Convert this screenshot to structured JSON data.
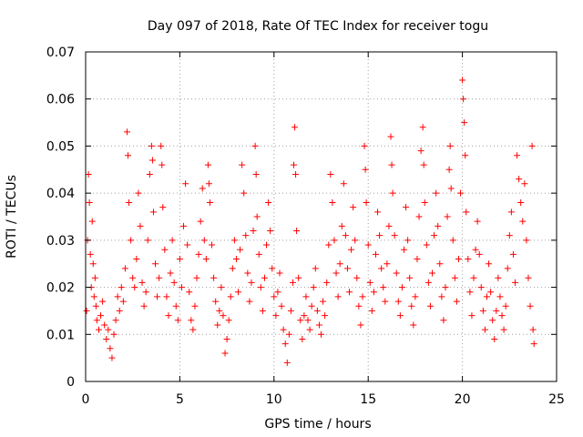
{
  "chart_data": {
    "type": "scatter",
    "title": "Day 097 of 2018, Rate Of TEC Index for receiver togu",
    "xlabel": "GPS time / hours",
    "ylabel": "ROTI / TECUs",
    "xlim": [
      0,
      25
    ],
    "ylim": [
      0,
      0.07
    ],
    "x_ticks": [
      0,
      5,
      10,
      15,
      20,
      25
    ],
    "x_tick_labels": [
      "0",
      "5",
      "10",
      "15",
      "20",
      "25"
    ],
    "y_ticks": [
      0,
      0.01,
      0.02,
      0.03,
      0.04,
      0.05,
      0.06,
      0.07
    ],
    "y_tick_labels": [
      "0",
      "0.01",
      "0.02",
      "0.03",
      "0.04",
      "0.05",
      "0.06",
      "0.07"
    ],
    "grid": true,
    "marker": "+",
    "color": "#ff0000",
    "series": [
      {
        "name": "ROTI",
        "points": [
          [
            0.05,
            0.015
          ],
          [
            0.1,
            0.03
          ],
          [
            0.15,
            0.044
          ],
          [
            0.2,
            0.038
          ],
          [
            0.25,
            0.027
          ],
          [
            0.3,
            0.02
          ],
          [
            0.35,
            0.034
          ],
          [
            0.4,
            0.025
          ],
          [
            0.45,
            0.018
          ],
          [
            0.5,
            0.022
          ],
          [
            0.55,
            0.016
          ],
          [
            0.6,
            0.013
          ],
          [
            0.7,
            0.011
          ],
          [
            0.8,
            0.014
          ],
          [
            0.9,
            0.017
          ],
          [
            1.0,
            0.012
          ],
          [
            1.1,
            0.009
          ],
          [
            1.2,
            0.011
          ],
          [
            1.3,
            0.007
          ],
          [
            1.4,
            0.005
          ],
          [
            1.5,
            0.01
          ],
          [
            1.6,
            0.013
          ],
          [
            1.7,
            0.018
          ],
          [
            1.8,
            0.015
          ],
          [
            1.9,
            0.02
          ],
          [
            2.0,
            0.017
          ],
          [
            2.1,
            0.024
          ],
          [
            2.2,
            0.053
          ],
          [
            2.25,
            0.048
          ],
          [
            2.3,
            0.038
          ],
          [
            2.4,
            0.03
          ],
          [
            2.5,
            0.022
          ],
          [
            2.6,
            0.02
          ],
          [
            2.7,
            0.026
          ],
          [
            2.8,
            0.04
          ],
          [
            2.9,
            0.033
          ],
          [
            3.0,
            0.021
          ],
          [
            3.1,
            0.016
          ],
          [
            3.2,
            0.019
          ],
          [
            3.3,
            0.03
          ],
          [
            3.4,
            0.044
          ],
          [
            3.5,
            0.05
          ],
          [
            3.55,
            0.047
          ],
          [
            3.6,
            0.036
          ],
          [
            3.7,
            0.025
          ],
          [
            3.8,
            0.018
          ],
          [
            3.9,
            0.022
          ],
          [
            4.0,
            0.05
          ],
          [
            4.05,
            0.046
          ],
          [
            4.1,
            0.037
          ],
          [
            4.2,
            0.028
          ],
          [
            4.3,
            0.018
          ],
          [
            4.4,
            0.014
          ],
          [
            4.5,
            0.023
          ],
          [
            4.6,
            0.03
          ],
          [
            4.7,
            0.021
          ],
          [
            4.8,
            0.016
          ],
          [
            4.9,
            0.013
          ],
          [
            5.0,
            0.026
          ],
          [
            5.1,
            0.02
          ],
          [
            5.2,
            0.033
          ],
          [
            5.3,
            0.042
          ],
          [
            5.4,
            0.029
          ],
          [
            5.5,
            0.019
          ],
          [
            5.6,
            0.013
          ],
          [
            5.7,
            0.011
          ],
          [
            5.8,
            0.016
          ],
          [
            5.9,
            0.022
          ],
          [
            6.0,
            0.027
          ],
          [
            6.1,
            0.034
          ],
          [
            6.2,
            0.041
          ],
          [
            6.3,
            0.03
          ],
          [
            6.4,
            0.026
          ],
          [
            6.5,
            0.046
          ],
          [
            6.55,
            0.042
          ],
          [
            6.6,
            0.038
          ],
          [
            6.7,
            0.029
          ],
          [
            6.8,
            0.022
          ],
          [
            6.9,
            0.017
          ],
          [
            7.0,
            0.012
          ],
          [
            7.1,
            0.015
          ],
          [
            7.2,
            0.02
          ],
          [
            7.3,
            0.014
          ],
          [
            7.4,
            0.006
          ],
          [
            7.5,
            0.009
          ],
          [
            7.6,
            0.013
          ],
          [
            7.7,
            0.018
          ],
          [
            7.8,
            0.024
          ],
          [
            7.9,
            0.03
          ],
          [
            8.0,
            0.026
          ],
          [
            8.1,
            0.019
          ],
          [
            8.2,
            0.028
          ],
          [
            8.3,
            0.046
          ],
          [
            8.4,
            0.04
          ],
          [
            8.5,
            0.031
          ],
          [
            8.6,
            0.023
          ],
          [
            8.7,
            0.017
          ],
          [
            8.8,
            0.021
          ],
          [
            8.9,
            0.032
          ],
          [
            9.0,
            0.05
          ],
          [
            9.05,
            0.044
          ],
          [
            9.1,
            0.035
          ],
          [
            9.2,
            0.027
          ],
          [
            9.3,
            0.02
          ],
          [
            9.4,
            0.015
          ],
          [
            9.5,
            0.022
          ],
          [
            9.6,
            0.029
          ],
          [
            9.7,
            0.038
          ],
          [
            9.8,
            0.032
          ],
          [
            9.9,
            0.024
          ],
          [
            10.0,
            0.018
          ],
          [
            10.1,
            0.014
          ],
          [
            10.2,
            0.019
          ],
          [
            10.3,
            0.023
          ],
          [
            10.4,
            0.016
          ],
          [
            10.5,
            0.011
          ],
          [
            10.6,
            0.008
          ],
          [
            10.7,
            0.004
          ],
          [
            10.8,
            0.01
          ],
          [
            10.9,
            0.015
          ],
          [
            11.0,
            0.021
          ],
          [
            11.05,
            0.046
          ],
          [
            11.1,
            0.054
          ],
          [
            11.15,
            0.044
          ],
          [
            11.2,
            0.032
          ],
          [
            11.3,
            0.022
          ],
          [
            11.4,
            0.013
          ],
          [
            11.5,
            0.009
          ],
          [
            11.6,
            0.014
          ],
          [
            11.7,
            0.018
          ],
          [
            11.8,
            0.013
          ],
          [
            11.9,
            0.011
          ],
          [
            12.0,
            0.016
          ],
          [
            12.1,
            0.02
          ],
          [
            12.2,
            0.024
          ],
          [
            12.3,
            0.015
          ],
          [
            12.4,
            0.012
          ],
          [
            12.5,
            0.01
          ],
          [
            12.6,
            0.017
          ],
          [
            12.7,
            0.014
          ],
          [
            12.8,
            0.021
          ],
          [
            12.9,
            0.029
          ],
          [
            13.0,
            0.044
          ],
          [
            13.1,
            0.038
          ],
          [
            13.2,
            0.03
          ],
          [
            13.3,
            0.023
          ],
          [
            13.4,
            0.018
          ],
          [
            13.5,
            0.025
          ],
          [
            13.6,
            0.033
          ],
          [
            13.7,
            0.042
          ],
          [
            13.8,
            0.031
          ],
          [
            13.9,
            0.024
          ],
          [
            14.0,
            0.019
          ],
          [
            14.1,
            0.028
          ],
          [
            14.2,
            0.037
          ],
          [
            14.3,
            0.03
          ],
          [
            14.4,
            0.022
          ],
          [
            14.5,
            0.016
          ],
          [
            14.6,
            0.012
          ],
          [
            14.7,
            0.018
          ],
          [
            14.8,
            0.05
          ],
          [
            14.85,
            0.045
          ],
          [
            14.9,
            0.038
          ],
          [
            15.0,
            0.029
          ],
          [
            15.1,
            0.021
          ],
          [
            15.2,
            0.015
          ],
          [
            15.3,
            0.019
          ],
          [
            15.4,
            0.027
          ],
          [
            15.5,
            0.036
          ],
          [
            15.6,
            0.031
          ],
          [
            15.7,
            0.024
          ],
          [
            15.8,
            0.02
          ],
          [
            15.9,
            0.017
          ],
          [
            16.0,
            0.025
          ],
          [
            16.1,
            0.033
          ],
          [
            16.2,
            0.052
          ],
          [
            16.25,
            0.046
          ],
          [
            16.3,
            0.04
          ],
          [
            16.4,
            0.031
          ],
          [
            16.5,
            0.023
          ],
          [
            16.6,
            0.017
          ],
          [
            16.7,
            0.014
          ],
          [
            16.8,
            0.02
          ],
          [
            16.9,
            0.028
          ],
          [
            17.0,
            0.037
          ],
          [
            17.1,
            0.03
          ],
          [
            17.2,
            0.022
          ],
          [
            17.3,
            0.016
          ],
          [
            17.4,
            0.012
          ],
          [
            17.5,
            0.018
          ],
          [
            17.6,
            0.026
          ],
          [
            17.7,
            0.035
          ],
          [
            17.8,
            0.049
          ],
          [
            17.9,
            0.054
          ],
          [
            17.95,
            0.046
          ],
          [
            18.0,
            0.038
          ],
          [
            18.1,
            0.029
          ],
          [
            18.2,
            0.021
          ],
          [
            18.3,
            0.016
          ],
          [
            18.4,
            0.023
          ],
          [
            18.5,
            0.031
          ],
          [
            18.6,
            0.04
          ],
          [
            18.7,
            0.033
          ],
          [
            18.8,
            0.025
          ],
          [
            18.9,
            0.018
          ],
          [
            19.0,
            0.013
          ],
          [
            19.1,
            0.02
          ],
          [
            19.2,
            0.035
          ],
          [
            19.3,
            0.045
          ],
          [
            19.35,
            0.05
          ],
          [
            19.4,
            0.041
          ],
          [
            19.5,
            0.03
          ],
          [
            19.6,
            0.022
          ],
          [
            19.7,
            0.017
          ],
          [
            19.8,
            0.026
          ],
          [
            19.9,
            0.04
          ],
          [
            20.0,
            0.064
          ],
          [
            20.05,
            0.06
          ],
          [
            20.1,
            0.055
          ],
          [
            20.15,
            0.048
          ],
          [
            20.2,
            0.036
          ],
          [
            20.3,
            0.026
          ],
          [
            20.4,
            0.019
          ],
          [
            20.5,
            0.014
          ],
          [
            20.6,
            0.022
          ],
          [
            20.7,
            0.028
          ],
          [
            20.8,
            0.034
          ],
          [
            20.9,
            0.027
          ],
          [
            21.0,
            0.02
          ],
          [
            21.1,
            0.015
          ],
          [
            21.2,
            0.011
          ],
          [
            21.3,
            0.018
          ],
          [
            21.4,
            0.025
          ],
          [
            21.5,
            0.019
          ],
          [
            21.6,
            0.013
          ],
          [
            21.7,
            0.009
          ],
          [
            21.8,
            0.015
          ],
          [
            21.9,
            0.022
          ],
          [
            22.0,
            0.018
          ],
          [
            22.1,
            0.014
          ],
          [
            22.2,
            0.011
          ],
          [
            22.3,
            0.016
          ],
          [
            22.4,
            0.024
          ],
          [
            22.5,
            0.031
          ],
          [
            22.6,
            0.036
          ],
          [
            22.7,
            0.027
          ],
          [
            22.8,
            0.021
          ],
          [
            22.9,
            0.048
          ],
          [
            23.0,
            0.043
          ],
          [
            23.1,
            0.038
          ],
          [
            23.2,
            0.034
          ],
          [
            23.3,
            0.042
          ],
          [
            23.4,
            0.03
          ],
          [
            23.5,
            0.022
          ],
          [
            23.6,
            0.016
          ],
          [
            23.7,
            0.05
          ],
          [
            23.75,
            0.011
          ],
          [
            23.8,
            0.008
          ]
        ]
      }
    ]
  }
}
